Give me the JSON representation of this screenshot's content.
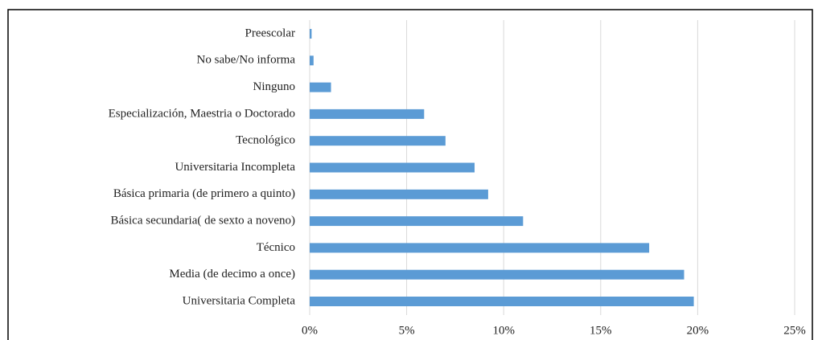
{
  "chart_data": {
    "type": "barh",
    "categories": [
      "Preescolar",
      "No sabe/No informa",
      "Ninguno",
      "Especialización, Maestria o Doctorado",
      "Tecnológico",
      "Universitaria Incompleta",
      "Básica primaria (de primero a quinto)",
      "Básica secundaria( de sexto a noveno)",
      "Técnico",
      "Media (de decimo a once)",
      "Universitaria Completa"
    ],
    "values": [
      0.1,
      0.2,
      1.1,
      5.9,
      7.0,
      8.5,
      9.2,
      11.0,
      17.5,
      19.3,
      19.8
    ],
    "color": "#5b9bd5",
    "xlim": [
      0,
      25
    ],
    "xticks": [
      {
        "value": 0,
        "label": "0%"
      },
      {
        "value": 5,
        "label": "5%"
      },
      {
        "value": 10,
        "label": "10%"
      },
      {
        "value": 15,
        "label": "15%"
      },
      {
        "value": 20,
        "label": "20%"
      },
      {
        "value": 25,
        "label": "25%"
      }
    ],
    "grid": true
  }
}
